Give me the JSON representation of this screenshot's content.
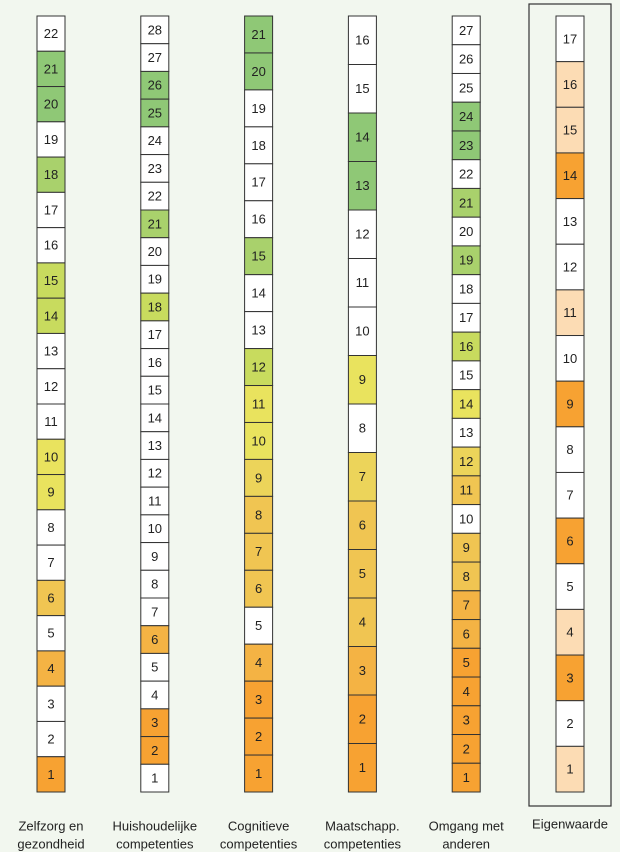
{
  "columns": [
    {
      "label": [
        "Zelfzorg en",
        "gezondheid"
      ],
      "cells": [
        {
          "n": 22,
          "color": "#ffffff"
        },
        {
          "n": 21,
          "color": "#8fc876"
        },
        {
          "n": 20,
          "color": "#8fc876"
        },
        {
          "n": 19,
          "color": "#ffffff"
        },
        {
          "n": 18,
          "color": "#a9d16c"
        },
        {
          "n": 17,
          "color": "#ffffff"
        },
        {
          "n": 16,
          "color": "#ffffff"
        },
        {
          "n": 15,
          "color": "#c8db5e"
        },
        {
          "n": 14,
          "color": "#c8db5e"
        },
        {
          "n": 13,
          "color": "#ffffff"
        },
        {
          "n": 12,
          "color": "#ffffff"
        },
        {
          "n": 11,
          "color": "#ffffff"
        },
        {
          "n": 10,
          "color": "#e9e35e"
        },
        {
          "n": 9,
          "color": "#e9e35e"
        },
        {
          "n": 8,
          "color": "#ffffff"
        },
        {
          "n": 7,
          "color": "#ffffff"
        },
        {
          "n": 6,
          "color": "#f0c552"
        },
        {
          "n": 5,
          "color": "#ffffff"
        },
        {
          "n": 4,
          "color": "#f4b344"
        },
        {
          "n": 3,
          "color": "#ffffff"
        },
        {
          "n": 2,
          "color": "#ffffff"
        },
        {
          "n": 1,
          "color": "#f7a232"
        }
      ]
    },
    {
      "label": [
        "Huishoudelijke",
        "competenties"
      ],
      "cells": [
        {
          "n": 28,
          "color": "#ffffff"
        },
        {
          "n": 27,
          "color": "#ffffff"
        },
        {
          "n": 26,
          "color": "#8fc876"
        },
        {
          "n": 25,
          "color": "#8fc876"
        },
        {
          "n": 24,
          "color": "#ffffff"
        },
        {
          "n": 23,
          "color": "#ffffff"
        },
        {
          "n": 22,
          "color": "#ffffff"
        },
        {
          "n": 21,
          "color": "#a9d16c"
        },
        {
          "n": 20,
          "color": "#ffffff"
        },
        {
          "n": 19,
          "color": "#ffffff"
        },
        {
          "n": 18,
          "color": "#c8db5e"
        },
        {
          "n": 17,
          "color": "#ffffff"
        },
        {
          "n": 16,
          "color": "#ffffff"
        },
        {
          "n": 15,
          "color": "#ffffff"
        },
        {
          "n": 14,
          "color": "#ffffff"
        },
        {
          "n": 13,
          "color": "#ffffff"
        },
        {
          "n": 12,
          "color": "#ffffff"
        },
        {
          "n": 11,
          "color": "#ffffff"
        },
        {
          "n": 10,
          "color": "#ffffff"
        },
        {
          "n": 9,
          "color": "#ffffff"
        },
        {
          "n": 8,
          "color": "#ffffff"
        },
        {
          "n": 7,
          "color": "#ffffff"
        },
        {
          "n": 6,
          "color": "#f4b344"
        },
        {
          "n": 5,
          "color": "#ffffff"
        },
        {
          "n": 4,
          "color": "#ffffff"
        },
        {
          "n": 3,
          "color": "#f7a232"
        },
        {
          "n": 2,
          "color": "#f7a232"
        },
        {
          "n": 1,
          "color": "#ffffff"
        }
      ]
    },
    {
      "label": [
        "Cognitieve",
        "competenties"
      ],
      "cells": [
        {
          "n": 21,
          "color": "#8fc876"
        },
        {
          "n": 20,
          "color": "#8fc876"
        },
        {
          "n": 19,
          "color": "#ffffff"
        },
        {
          "n": 18,
          "color": "#ffffff"
        },
        {
          "n": 17,
          "color": "#ffffff"
        },
        {
          "n": 16,
          "color": "#ffffff"
        },
        {
          "n": 15,
          "color": "#a9d16c"
        },
        {
          "n": 14,
          "color": "#ffffff"
        },
        {
          "n": 13,
          "color": "#ffffff"
        },
        {
          "n": 12,
          "color": "#c8db5e"
        },
        {
          "n": 11,
          "color": "#e9e35e"
        },
        {
          "n": 10,
          "color": "#e9e35e"
        },
        {
          "n": 9,
          "color": "#ecd45a"
        },
        {
          "n": 8,
          "color": "#f0c552"
        },
        {
          "n": 7,
          "color": "#f0c552"
        },
        {
          "n": 6,
          "color": "#f0c552"
        },
        {
          "n": 5,
          "color": "#ffffff"
        },
        {
          "n": 4,
          "color": "#f4b344"
        },
        {
          "n": 3,
          "color": "#f7a232"
        },
        {
          "n": 2,
          "color": "#f7a232"
        },
        {
          "n": 1,
          "color": "#f7a232"
        }
      ]
    },
    {
      "label": [
        "Maatschapp.",
        "competenties"
      ],
      "cells": [
        {
          "n": 16,
          "color": "#ffffff"
        },
        {
          "n": 15,
          "color": "#ffffff"
        },
        {
          "n": 14,
          "color": "#8fc876"
        },
        {
          "n": 13,
          "color": "#8fc876"
        },
        {
          "n": 12,
          "color": "#ffffff"
        },
        {
          "n": 11,
          "color": "#ffffff"
        },
        {
          "n": 10,
          "color": "#ffffff"
        },
        {
          "n": 9,
          "color": "#e9e35e"
        },
        {
          "n": 8,
          "color": "#ffffff"
        },
        {
          "n": 7,
          "color": "#ecd45a"
        },
        {
          "n": 6,
          "color": "#f0c552"
        },
        {
          "n": 5,
          "color": "#f0c552"
        },
        {
          "n": 4,
          "color": "#f0c552"
        },
        {
          "n": 3,
          "color": "#f4b344"
        },
        {
          "n": 2,
          "color": "#f7a232"
        },
        {
          "n": 1,
          "color": "#f7a232"
        }
      ]
    },
    {
      "label": [
        "Omgang met",
        "anderen"
      ],
      "cells": [
        {
          "n": 27,
          "color": "#ffffff"
        },
        {
          "n": 26,
          "color": "#ffffff"
        },
        {
          "n": 25,
          "color": "#ffffff"
        },
        {
          "n": 24,
          "color": "#8fc876"
        },
        {
          "n": 23,
          "color": "#8fc876"
        },
        {
          "n": 22,
          "color": "#ffffff"
        },
        {
          "n": 21,
          "color": "#a9d16c"
        },
        {
          "n": 20,
          "color": "#ffffff"
        },
        {
          "n": 19,
          "color": "#a9d16c"
        },
        {
          "n": 18,
          "color": "#ffffff"
        },
        {
          "n": 17,
          "color": "#ffffff"
        },
        {
          "n": 16,
          "color": "#c8db5e"
        },
        {
          "n": 15,
          "color": "#ffffff"
        },
        {
          "n": 14,
          "color": "#e9e35e"
        },
        {
          "n": 13,
          "color": "#ffffff"
        },
        {
          "n": 12,
          "color": "#ecd45a"
        },
        {
          "n": 11,
          "color": "#f0c552"
        },
        {
          "n": 10,
          "color": "#ffffff"
        },
        {
          "n": 9,
          "color": "#f0c552"
        },
        {
          "n": 8,
          "color": "#f0c552"
        },
        {
          "n": 7,
          "color": "#f4b344"
        },
        {
          "n": 6,
          "color": "#f4b344"
        },
        {
          "n": 5,
          "color": "#f7a232"
        },
        {
          "n": 4,
          "color": "#f7a232"
        },
        {
          "n": 3,
          "color": "#f7a232"
        },
        {
          "n": 2,
          "color": "#f7a232"
        },
        {
          "n": 1,
          "color": "#f7a232"
        }
      ]
    },
    {
      "label": [
        "Eigenwaarde"
      ],
      "framed": true,
      "cells": [
        {
          "n": 17,
          "color": "#ffffff"
        },
        {
          "n": 16,
          "color": "#fcdcb4"
        },
        {
          "n": 15,
          "color": "#fcdcb4"
        },
        {
          "n": 14,
          "color": "#f7a232"
        },
        {
          "n": 13,
          "color": "#ffffff"
        },
        {
          "n": 12,
          "color": "#ffffff"
        },
        {
          "n": 11,
          "color": "#fcdcb4"
        },
        {
          "n": 10,
          "color": "#ffffff"
        },
        {
          "n": 9,
          "color": "#f7a232"
        },
        {
          "n": 8,
          "color": "#ffffff"
        },
        {
          "n": 7,
          "color": "#ffffff"
        },
        {
          "n": 6,
          "color": "#f7a232"
        },
        {
          "n": 5,
          "color": "#ffffff"
        },
        {
          "n": 4,
          "color": "#fcdcb4"
        },
        {
          "n": 3,
          "color": "#f7a232"
        },
        {
          "n": 2,
          "color": "#ffffff"
        },
        {
          "n": 1,
          "color": "#fcdcb4"
        }
      ]
    }
  ]
}
